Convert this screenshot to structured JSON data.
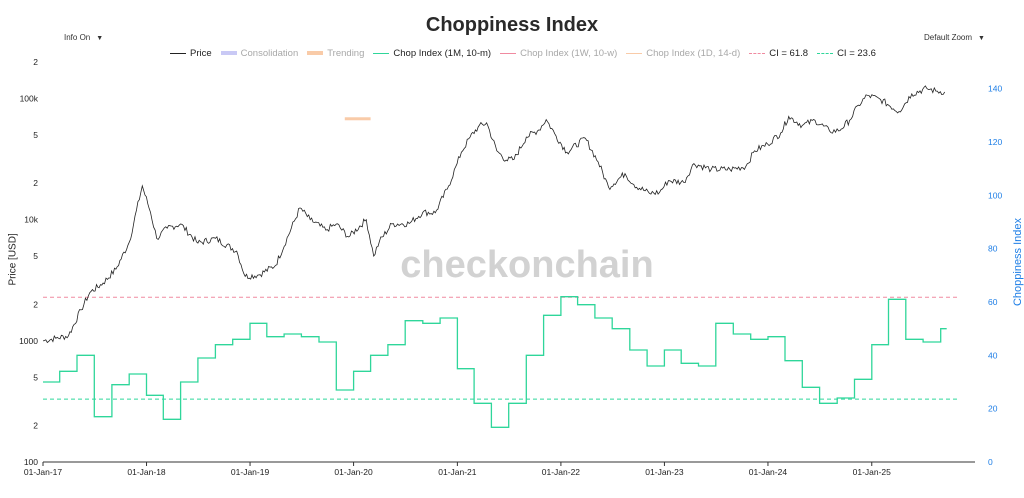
{
  "chart_data": {
    "type": "line",
    "title": "Choppiness Index",
    "controls": {
      "info": "Info On",
      "zoom": "Default Zoom",
      "caret": "▼"
    },
    "watermark": "checkonchain",
    "y_left": {
      "label": "Price [USD]",
      "scale": "log",
      "range": [
        100,
        200000
      ],
      "ticks": [
        {
          "v": 200,
          "t": "2"
        },
        {
          "v": 500,
          "t": "5"
        },
        {
          "v": 1000,
          "t": "1000"
        },
        {
          "v": 2000,
          "t": "2"
        },
        {
          "v": 5000,
          "t": "5"
        },
        {
          "v": 10000,
          "t": "10k"
        },
        {
          "v": 20000,
          "t": "2"
        },
        {
          "v": 50000,
          "t": "5"
        },
        {
          "v": 100000,
          "t": "100k"
        },
        {
          "v": 200000,
          "t": "2"
        }
      ]
    },
    "y_right": {
      "label": "Choppiness Index",
      "range": [
        0,
        150
      ],
      "ticks": [
        0,
        20,
        40,
        60,
        80,
        100,
        120,
        140
      ],
      "color": "#1e7ee6"
    },
    "x_axis": {
      "range": [
        "2017-01-01",
        "2025-12-31"
      ],
      "ticks": [
        "01-Jan-17",
        "01-Jan-18",
        "01-Jan-19",
        "01-Jan-20",
        "01-Jan-21",
        "01-Jan-22",
        "01-Jan-23",
        "01-Jan-24",
        "01-Jan-25"
      ]
    },
    "legend": [
      {
        "name": "Price",
        "color": "#222222",
        "style": "line"
      },
      {
        "name": "Consolidation",
        "color": "#c9c9f5",
        "style": "block"
      },
      {
        "name": "Trending",
        "color": "#f9cba8",
        "style": "block"
      },
      {
        "name": "Chop Index (1M, 10-m)",
        "color": "#2fd69a",
        "style": "line"
      },
      {
        "name": "Chop Index (1W, 10-w)",
        "color": "#f08aa0",
        "style": "line"
      },
      {
        "name": "Chop Index (1D, 14-d)",
        "color": "#f9cba8",
        "style": "line"
      },
      {
        "name": "CI = 61.8",
        "color": "#f08aa0",
        "style": "dash"
      },
      {
        "name": "CI = 23.6",
        "color": "#2fd69a",
        "style": "dash"
      }
    ],
    "legend_hidden": [
      "Consolidation",
      "Trending",
      "Chop Index (1W, 10-w)",
      "Chop Index (1D, 14-d)"
    ],
    "reference_lines": [
      {
        "name": "CI = 61.8",
        "value": 61.8,
        "color": "#f08aa0"
      },
      {
        "name": "CI = 23.6",
        "value": 23.6,
        "color": "#2fd69a"
      }
    ],
    "trending_band": {
      "x": [
        "2019-12-01",
        "2020-03-01"
      ],
      "level": 68000
    },
    "series": [
      {
        "name": "Price",
        "axis": "left",
        "color": "#222222",
        "x": [
          "2017-01-01",
          "2017-02-15",
          "2017-04-01",
          "2017-05-15",
          "2017-06-15",
          "2017-08-01",
          "2017-09-15",
          "2017-11-01",
          "2017-12-17",
          "2018-01-15",
          "2018-02-06",
          "2018-03-15",
          "2018-05-01",
          "2018-07-01",
          "2018-09-01",
          "2018-11-15",
          "2018-12-15",
          "2019-02-01",
          "2019-04-01",
          "2019-06-26",
          "2019-08-01",
          "2019-09-25",
          "2019-11-01",
          "2019-12-15",
          "2020-02-15",
          "2020-03-12",
          "2020-04-01",
          "2020-05-15",
          "2020-07-15",
          "2020-09-01",
          "2020-10-15",
          "2020-12-01",
          "2020-12-31",
          "2021-01-15",
          "2021-02-15",
          "2021-03-15",
          "2021-04-14",
          "2021-05-20",
          "2021-06-22",
          "2021-07-20",
          "2021-09-01",
          "2021-10-15",
          "2021-11-10",
          "2021-12-15",
          "2022-01-22",
          "2022-03-28",
          "2022-05-12",
          "2022-06-18",
          "2022-08-15",
          "2022-09-15",
          "2022-11-09",
          "2022-12-15",
          "2023-01-15",
          "2023-03-10",
          "2023-04-15",
          "2023-06-15",
          "2023-08-20",
          "2023-10-15",
          "2023-11-15",
          "2023-12-31",
          "2024-02-15",
          "2024-03-14",
          "2024-05-01",
          "2024-06-15",
          "2024-08-05",
          "2024-09-06",
          "2024-10-15",
          "2024-11-15",
          "2024-12-17",
          "2025-02-01",
          "2025-04-07",
          "2025-05-22",
          "2025-07-14",
          "2025-08-15",
          "2025-09-15"
        ],
        "values": [
          1000,
          1050,
          1100,
          1800,
          2500,
          3000,
          3900,
          6500,
          19000,
          11500,
          7000,
          8500,
          9200,
          6400,
          7000,
          5500,
          3400,
          3500,
          4200,
          12500,
          10000,
          8200,
          9200,
          7200,
          10000,
          5000,
          6600,
          9200,
          9300,
          11500,
          11400,
          19000,
          29000,
          36000,
          48000,
          58000,
          63000,
          37000,
          31000,
          31500,
          48000,
          55000,
          67000,
          49000,
          36000,
          47000,
          30000,
          18500,
          24000,
          19500,
          16500,
          16800,
          21000,
          20300,
          29000,
          26000,
          26000,
          27500,
          37000,
          42000,
          52000,
          71000,
          60000,
          66000,
          54000,
          54000,
          66000,
          88000,
          106000,
          98000,
          78000,
          109000,
          121000,
          115000,
          113000
        ]
      },
      {
        "name": "Chop Index (1M, 10-m)",
        "axis": "right",
        "color": "#2fd69a",
        "shape": "step",
        "x": [
          "2017-01-01",
          "2017-03-01",
          "2017-05-01",
          "2017-07-01",
          "2017-09-01",
          "2017-11-01",
          "2018-01-01",
          "2018-03-01",
          "2018-05-01",
          "2018-07-01",
          "2018-09-01",
          "2018-11-01",
          "2019-01-01",
          "2019-03-01",
          "2019-05-01",
          "2019-07-01",
          "2019-09-01",
          "2019-11-01",
          "2020-01-01",
          "2020-03-01",
          "2020-05-01",
          "2020-07-01",
          "2020-09-01",
          "2020-11-01",
          "2021-01-01",
          "2021-03-01",
          "2021-05-01",
          "2021-07-01",
          "2021-09-01",
          "2021-11-01",
          "2022-01-01",
          "2022-03-01",
          "2022-05-01",
          "2022-07-01",
          "2022-09-01",
          "2022-11-01",
          "2023-01-01",
          "2023-03-01",
          "2023-05-01",
          "2023-07-01",
          "2023-09-01",
          "2023-11-01",
          "2024-01-01",
          "2024-03-01",
          "2024-05-01",
          "2024-07-01",
          "2024-09-01",
          "2024-11-01",
          "2025-01-01",
          "2025-03-01",
          "2025-05-01",
          "2025-07-01",
          "2025-09-01"
        ],
        "values": [
          30,
          34,
          40,
          17,
          29,
          33,
          25,
          16,
          30,
          39,
          44,
          46,
          52,
          47,
          48,
          47,
          45,
          27,
          34,
          40,
          44,
          53,
          52,
          54,
          35,
          22,
          13,
          22,
          40,
          55,
          62,
          59,
          54,
          50,
          42,
          36,
          42,
          37,
          36,
          52,
          48,
          46,
          47,
          38,
          28,
          22,
          24,
          31,
          44,
          61,
          46,
          45,
          50
        ]
      }
    ]
  }
}
